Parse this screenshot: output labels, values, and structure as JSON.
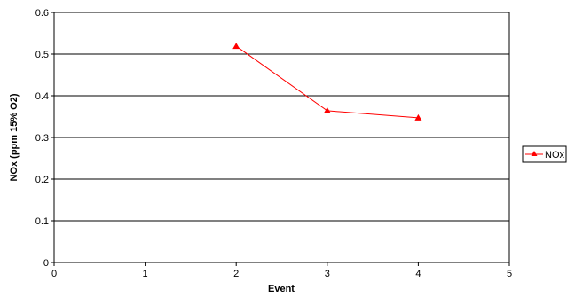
{
  "chart_data": {
    "type": "line",
    "xlabel": "Event",
    "ylabel": "NOx (ppm 15% O2)",
    "xlim": [
      0,
      5
    ],
    "ylim": [
      0,
      0.6
    ],
    "x_ticks": [
      0,
      1,
      2,
      3,
      4,
      5
    ],
    "y_ticks": [
      0,
      0.1,
      0.2,
      0.3,
      0.4,
      0.5,
      0.6
    ],
    "grid": "horizontal",
    "legend_position": "right",
    "series": [
      {
        "name": "NOx",
        "color": "#ff0000",
        "marker": "triangle",
        "x": [
          2,
          3,
          4
        ],
        "y": [
          0.519,
          0.364,
          0.347
        ]
      }
    ]
  }
}
